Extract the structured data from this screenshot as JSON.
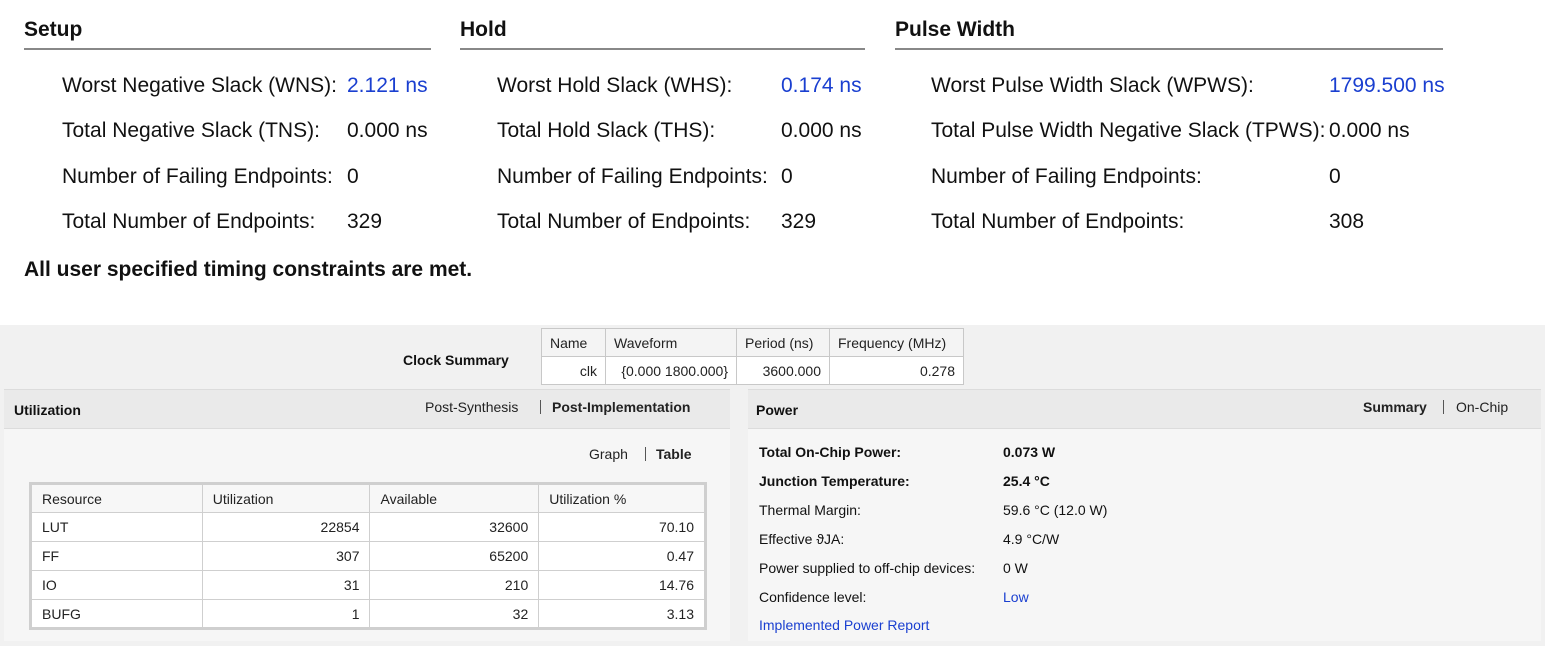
{
  "timing": {
    "setup": {
      "title": "Setup",
      "rows": [
        {
          "label": "Worst Negative Slack (WNS):",
          "value": "2.121 ns"
        },
        {
          "label": "Total Negative Slack (TNS):",
          "value": "0.000 ns"
        },
        {
          "label": "Number of Failing Endpoints:",
          "value": "0"
        },
        {
          "label": "Total Number of Endpoints:",
          "value": "329"
        }
      ]
    },
    "hold": {
      "title": "Hold",
      "rows": [
        {
          "label": "Worst Hold Slack (WHS):",
          "value": "0.174 ns"
        },
        {
          "label": "Total Hold Slack (THS):",
          "value": "0.000 ns"
        },
        {
          "label": "Number of Failing Endpoints:",
          "value": "0"
        },
        {
          "label": "Total Number of Endpoints:",
          "value": "329"
        }
      ]
    },
    "pulse_width": {
      "title": "Pulse Width",
      "rows": [
        {
          "label": "Worst Pulse Width Slack (WPWS):",
          "value": "1799.500 ns"
        },
        {
          "label": "Total Pulse Width Negative Slack (TPWS):",
          "value": "0.000 ns"
        },
        {
          "label": "Number of Failing Endpoints:",
          "value": "0"
        },
        {
          "label": "Total Number of Endpoints:",
          "value": "308"
        }
      ]
    },
    "message": "All user specified timing constraints are met.",
    "link_color": "#1a3fd0"
  },
  "clock_summary": {
    "label": "Clock Summary",
    "headers": [
      "Name",
      "Waveform",
      "Period (ns)",
      "Frequency (MHz)"
    ],
    "row": [
      "clk",
      "{0.000 1800.000}",
      "3600.000",
      "0.278"
    ]
  },
  "utilization": {
    "title": "Utilization",
    "tabs": [
      "Post-Synthesis",
      "Post-Implementation"
    ],
    "view_tabs": [
      "Graph",
      "Table"
    ],
    "headers": [
      "Resource",
      "Utilization",
      "Available",
      "Utilization %"
    ],
    "rows": [
      [
        "LUT",
        "22854",
        "32600",
        "70.10"
      ],
      [
        "FF",
        "307",
        "65200",
        "0.47"
      ],
      [
        "IO",
        "31",
        "210",
        "14.76"
      ],
      [
        "BUFG",
        "1",
        "32",
        "3.13"
      ]
    ]
  },
  "power": {
    "title": "Power",
    "tabs": [
      "Summary",
      "On-Chip"
    ],
    "rows": [
      {
        "label": "Total On-Chip Power:",
        "value": "0.073 W"
      },
      {
        "label": "Junction Temperature:",
        "value": "25.4 °C"
      },
      {
        "label": "Thermal Margin:",
        "value": "59.6 °C (12.0 W)"
      },
      {
        "label": "Effective ϑJA:",
        "value": "4.9 °C/W"
      },
      {
        "label": "Power supplied to off-chip devices:",
        "value": "0 W"
      },
      {
        "label": "Confidence level:",
        "value": "Low"
      }
    ],
    "report_link": "Implemented Power Report"
  }
}
